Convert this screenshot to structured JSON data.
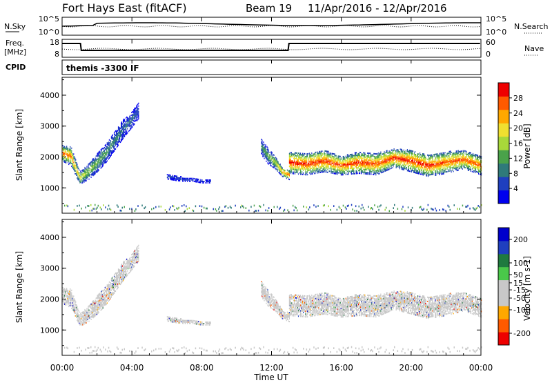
{
  "header": {
    "station": "Fort Hays East (fitACF)",
    "beam": "Beam 19",
    "date_range": "11/Apr/2016 - 12/Apr/2016"
  },
  "strip_panels": {
    "nsky_label": "N.Sky",
    "nsky_ticks": [
      "10^5",
      "10^0"
    ],
    "nsearch_label": "N.Search",
    "nsearch_ticks": [
      "10^5",
      "10^0"
    ],
    "freq_label_1": "Freq.",
    "freq_label_2": "[MHz]",
    "freq_ticks": [
      "18",
      "8"
    ],
    "nave_label": "Nave",
    "nave_ticks": [
      "60",
      "0"
    ],
    "cpid_label": "CPID",
    "cpid_text": "themis -3300 IF"
  },
  "chart_data": [
    {
      "type": "heatmap",
      "quantity": "Power",
      "colorbar_label": "Power [dB]",
      "colorbar_ticks": [
        28,
        24,
        20,
        16,
        12,
        8,
        4
      ],
      "colorbar_range": [
        0,
        32
      ],
      "colorscale": [
        "#0000ee",
        "#1f3fbf",
        "#2f7a7a",
        "#4aa24a",
        "#a8d83a",
        "#f0e030",
        "#ffa800",
        "#ff5a00",
        "#ee0000"
      ],
      "ylabel": "Slant Range [km]",
      "yticks": [
        1000,
        2000,
        3000,
        4000
      ],
      "ylim": [
        180,
        4580
      ],
      "x_ticks": [
        "00:00",
        "04:00",
        "08:00",
        "12:00",
        "16:00",
        "20:00",
        "00:00"
      ],
      "xlim_hours": [
        0,
        24
      ],
      "echo_bands": [
        {
          "t": [
            0.0,
            0.5,
            1.0,
            1.5,
            2.0,
            2.5,
            3.0,
            3.5,
            4.0,
            4.4
          ],
          "range_center": [
            2100,
            2000,
            1300,
            1500,
            1800,
            2100,
            2500,
            2900,
            3200,
            3500
          ],
          "halfwidth": [
            250,
            300,
            200,
            250,
            300,
            300,
            300,
            300,
            250,
            250
          ],
          "peak_db": [
            28,
            26,
            20,
            16,
            14,
            12,
            10,
            8,
            8,
            6
          ]
        },
        {
          "t": [
            6.0,
            6.5,
            7.0,
            7.5,
            8.0,
            8.5
          ],
          "range_center": [
            1350,
            1300,
            1250,
            1250,
            1200,
            1200
          ],
          "halfwidth": [
            80,
            80,
            60,
            60,
            60,
            60
          ],
          "peak_db": [
            6,
            6,
            6,
            5,
            5,
            5
          ]
        },
        {
          "t": [
            11.4,
            11.8,
            12.2,
            12.6,
            13.0
          ],
          "range_center": [
            2300,
            2000,
            1800,
            1500,
            1400
          ],
          "halfwidth": [
            250,
            250,
            200,
            150,
            150
          ],
          "peak_db": [
            10,
            14,
            18,
            24,
            28
          ]
        },
        {
          "t": [
            13.0,
            14.0,
            15.0,
            16.0,
            17.0,
            18.0,
            19.0,
            20.0,
            21.0,
            22.0,
            23.0,
            24.0
          ],
          "range_center": [
            1800,
            1750,
            1850,
            1700,
            1800,
            1750,
            1950,
            1850,
            1700,
            1800,
            1900,
            1700
          ],
          "halfwidth": [
            350,
            350,
            350,
            300,
            350,
            350,
            300,
            350,
            350,
            350,
            300,
            300
          ],
          "peak_db": [
            30,
            30,
            30,
            28,
            30,
            28,
            30,
            30,
            30,
            28,
            28,
            28
          ]
        }
      ]
    },
    {
      "type": "heatmap",
      "quantity": "Velocity",
      "colorbar_label": "Velocity [m s-1]",
      "colorbar_ticks": [
        200,
        100,
        50,
        15,
        -15,
        -50,
        -100,
        -200
      ],
      "colorbar_range": [
        -250,
        250
      ],
      "colorscale": [
        "#ee0000",
        "#ff5a00",
        "#ffa800",
        "#c8c8c8",
        "#c8c8c8",
        "#4ac84a",
        "#1f7a3f",
        "#1f3fbf",
        "#0000cc"
      ],
      "ylabel": "Slant Range [km]",
      "yticks": [
        1000,
        2000,
        3000,
        4000
      ],
      "ylim": [
        180,
        4580
      ],
      "x_ticks": [
        "00:00",
        "04:00",
        "08:00",
        "12:00",
        "16:00",
        "20:00",
        "00:00"
      ],
      "xlim_hours": [
        0,
        24
      ],
      "xlabel": "Time UT",
      "velocity_mostly_between": [
        -15,
        15
      ]
    }
  ]
}
